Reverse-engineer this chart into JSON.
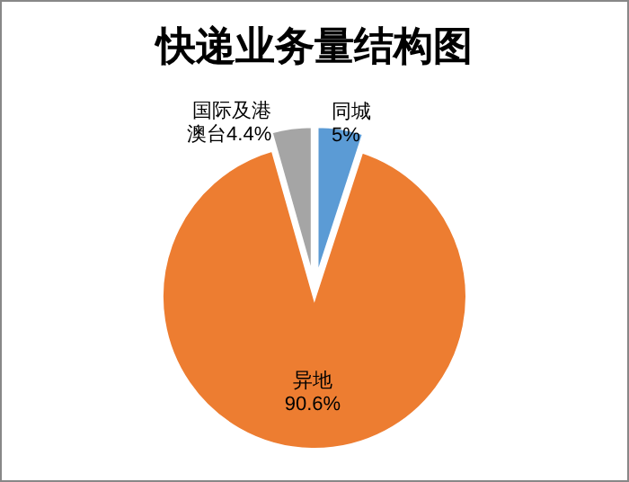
{
  "chart_data": {
    "type": "pie",
    "title": "快递业务量结构图",
    "categories": [
      "同城",
      "异地",
      "国际及港澳台"
    ],
    "values": [
      5,
      90.6,
      4.4
    ],
    "value_labels": [
      "5%",
      "90.6%",
      "4.4%"
    ],
    "colors": [
      "#5b9bd5",
      "#ed7d31",
      "#a5a5a5"
    ]
  }
}
